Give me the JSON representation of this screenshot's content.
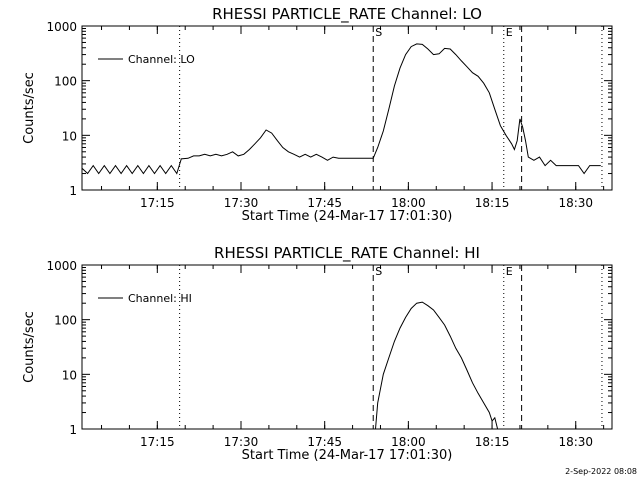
{
  "footer": "2-Sep-2022 08:08",
  "chart_data": [
    {
      "type": "line",
      "title": "RHESSI PARTICLE_RATE Channel: LO",
      "xlabel": "Start Time (24-Mar-17 17:01:30)",
      "ylabel": "Counts/sec",
      "x_unit": "minutes since 17:01:30",
      "xlim": [
        0,
        95
      ],
      "ylim": [
        1,
        1000
      ],
      "yscale": "log",
      "grid": false,
      "legend_position": "top-left",
      "x_ticks": [
        {
          "x": 13.5,
          "label": "17:15"
        },
        {
          "x": 28.5,
          "label": "17:30"
        },
        {
          "x": 43.5,
          "label": "17:45"
        },
        {
          "x": 58.5,
          "label": "18:00"
        },
        {
          "x": 73.5,
          "label": "18:15"
        },
        {
          "x": 88.5,
          "label": "18:30"
        }
      ],
      "y_ticks": [
        {
          "y": 1,
          "label": "1"
        },
        {
          "y": 10,
          "label": "10"
        },
        {
          "y": 100,
          "label": "100"
        },
        {
          "y": 1000,
          "label": "1000"
        }
      ],
      "vlines": [
        {
          "x": 17.5,
          "style": "dotted",
          "label": ""
        },
        {
          "x": 52.2,
          "style": "dashed",
          "label": "S"
        },
        {
          "x": 75.6,
          "style": "dotted",
          "label": "E"
        },
        {
          "x": 78.8,
          "style": "dashed",
          "label": ""
        },
        {
          "x": 93.2,
          "style": "dotted",
          "label": ""
        }
      ],
      "series": [
        {
          "name": "Channel: LO",
          "x": [
            0,
            1,
            2,
            3,
            4,
            5,
            6,
            7,
            8,
            9,
            10,
            11,
            12,
            13,
            14,
            15,
            16,
            17,
            17.8,
            19,
            20,
            21,
            22,
            23,
            24,
            25,
            26,
            27,
            28,
            29,
            30,
            31,
            32,
            33,
            34,
            35,
            36,
            37,
            38,
            39,
            40,
            41,
            42,
            43,
            44,
            45,
            46,
            47,
            48,
            49,
            50,
            51,
            52.2,
            53,
            54,
            55,
            56,
            57,
            58,
            59,
            60,
            61,
            62,
            63,
            64,
            65,
            66,
            67,
            68,
            69,
            70,
            71,
            72,
            73,
            74,
            75,
            76,
            77,
            77.5,
            78,
            78.5,
            79,
            79.5,
            80,
            81,
            82,
            83,
            84,
            85,
            86,
            87,
            88,
            89,
            90,
            91,
            92,
            93
          ],
          "y": [
            2.5,
            2.0,
            2.8,
            2.0,
            2.8,
            2.0,
            2.8,
            2.0,
            2.8,
            2.0,
            2.8,
            2.0,
            2.8,
            2.0,
            2.8,
            2.0,
            2.8,
            2.0,
            3.7,
            3.8,
            4.2,
            4.2,
            4.5,
            4.2,
            4.5,
            4.2,
            4.5,
            5.0,
            4.2,
            4.5,
            5.5,
            7.0,
            9.0,
            12.5,
            11.0,
            8.0,
            6.0,
            5.0,
            4.5,
            4.0,
            4.5,
            4.0,
            4.5,
            4.0,
            3.5,
            4.0,
            3.8,
            3.8,
            3.8,
            3.8,
            3.8,
            3.8,
            3.8,
            6.0,
            12.0,
            30.0,
            80.0,
            170.0,
            300.0,
            420.0,
            470.0,
            460.0,
            380.0,
            300.0,
            310.0,
            390.0,
            380.0,
            300.0,
            230.0,
            180.0,
            140.0,
            120.0,
            90.0,
            60.0,
            30.0,
            15.0,
            10.0,
            7.0,
            5.5,
            8.0,
            20.0,
            14.0,
            8.0,
            4.0,
            3.5,
            4.0,
            2.8,
            3.5,
            2.8,
            2.8,
            2.8,
            2.8,
            2.8,
            2.0,
            2.8,
            2.8,
            2.8
          ]
        }
      ]
    },
    {
      "type": "line",
      "title": "RHESSI PARTICLE_RATE Channel: HI",
      "xlabel": "Start Time (24-Mar-17 17:01:30)",
      "ylabel": "Counts/sec",
      "x_unit": "minutes since 17:01:30",
      "xlim": [
        0,
        95
      ],
      "ylim": [
        1,
        1000
      ],
      "yscale": "log",
      "grid": false,
      "legend_position": "top-left",
      "x_ticks": [
        {
          "x": 13.5,
          "label": "17:15"
        },
        {
          "x": 28.5,
          "label": "17:30"
        },
        {
          "x": 43.5,
          "label": "17:45"
        },
        {
          "x": 58.5,
          "label": "18:00"
        },
        {
          "x": 73.5,
          "label": "18:15"
        },
        {
          "x": 88.5,
          "label": "18:30"
        }
      ],
      "y_ticks": [
        {
          "y": 1,
          "label": "1"
        },
        {
          "y": 10,
          "label": "10"
        },
        {
          "y": 100,
          "label": "100"
        },
        {
          "y": 1000,
          "label": "1000"
        }
      ],
      "vlines": [
        {
          "x": 17.5,
          "style": "dotted",
          "label": ""
        },
        {
          "x": 52.2,
          "style": "dashed",
          "label": "S"
        },
        {
          "x": 75.6,
          "style": "dotted",
          "label": "E"
        },
        {
          "x": 78.8,
          "style": "dashed",
          "label": ""
        },
        {
          "x": 93.2,
          "style": "dotted",
          "label": ""
        }
      ],
      "series": [
        {
          "name": "Channel: HI",
          "x": [
            52.6,
            53,
            54,
            55,
            56,
            57,
            58,
            59,
            60,
            61,
            62,
            63,
            64,
            65,
            66,
            67,
            68,
            69,
            70,
            71,
            72,
            73,
            73.5,
            74,
            74.5
          ],
          "y": [
            1.0,
            3.0,
            10.0,
            20.0,
            40.0,
            70.0,
            110.0,
            160.0,
            200.0,
            210.0,
            180.0,
            150.0,
            110.0,
            80.0,
            50.0,
            30.0,
            20.0,
            12.0,
            7.0,
            4.5,
            3.0,
            2.0,
            1.4,
            1.6,
            1.0
          ]
        }
      ]
    }
  ]
}
